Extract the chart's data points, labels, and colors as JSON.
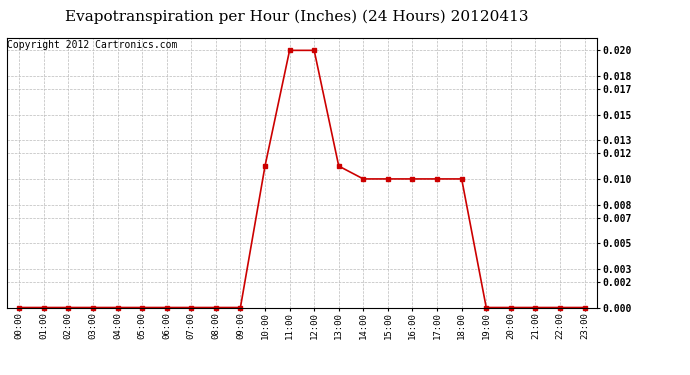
{
  "title": "Evapotranspiration per Hour (Inches) (24 Hours) 20120413",
  "copyright_text": "Copyright 2012 Cartronics.com",
  "hours": [
    "00:00",
    "01:00",
    "02:00",
    "03:00",
    "04:00",
    "05:00",
    "06:00",
    "07:00",
    "08:00",
    "09:00",
    "10:00",
    "11:00",
    "12:00",
    "13:00",
    "14:00",
    "15:00",
    "16:00",
    "17:00",
    "18:00",
    "19:00",
    "20:00",
    "21:00",
    "22:00",
    "23:00"
  ],
  "values": [
    0.0,
    0.0,
    0.0,
    0.0,
    0.0,
    0.0,
    0.0,
    0.0,
    0.0,
    0.0,
    0.011,
    0.02,
    0.02,
    0.011,
    0.01,
    0.01,
    0.01,
    0.01,
    0.01,
    0.0,
    0.0,
    0.0,
    0.0,
    0.0
  ],
  "line_color": "#cc0000",
  "marker": "s",
  "marker_size": 2.5,
  "background_color": "#ffffff",
  "grid_color": "#bbbbbb",
  "ylim": [
    0.0,
    0.021
  ],
  "yticks": [
    0.0,
    0.002,
    0.003,
    0.005,
    0.007,
    0.008,
    0.01,
    0.012,
    0.013,
    0.015,
    0.017,
    0.018,
    0.02
  ],
  "title_fontsize": 11,
  "copyright_fontsize": 7
}
